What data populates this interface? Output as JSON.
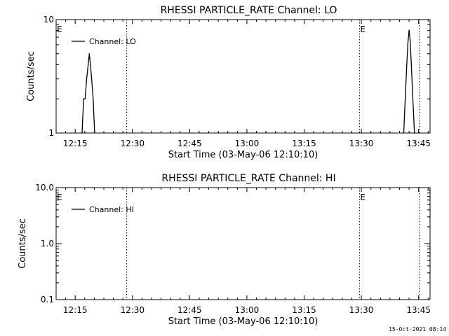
{
  "footer_timestamp": "15-Oct-2021 08:14",
  "chart_data": [
    {
      "type": "line",
      "title": "RHESSI PARTICLE_RATE Channel: LO",
      "xlabel": "Start Time (03-May-06 12:10:10)",
      "ylabel": "Counts/sec",
      "y_scale": "log",
      "ylim": [
        1,
        10
      ],
      "y_ticks": [
        {
          "v": 1,
          "label": "1"
        },
        {
          "v": 10,
          "label": "10"
        }
      ],
      "xlim_minutes_after_1210": [
        0,
        98
      ],
      "x_ticks": [
        {
          "m": 5,
          "label": "12:15"
        },
        {
          "m": 20,
          "label": "12:30"
        },
        {
          "m": 35,
          "label": "12:45"
        },
        {
          "m": 50,
          "label": "13:00"
        },
        {
          "m": 65,
          "label": "13:15"
        },
        {
          "m": 80,
          "label": "13:30"
        },
        {
          "m": 95,
          "label": "13:45"
        }
      ],
      "legend": {
        "label": "Channel: LO",
        "position": "top-left"
      },
      "event_lines": [
        {
          "m": 18.5,
          "label": ""
        },
        {
          "m": 79.5,
          "label": "E"
        },
        {
          "m": 95.2,
          "label": ""
        }
      ],
      "corner_marker": "E",
      "series": [
        {
          "x": [
            6.8,
            7.2,
            7.6,
            8.0,
            8.4,
            8.7,
            9.0,
            9.3,
            9.7,
            10.1
          ],
          "y": [
            1,
            2,
            2,
            3,
            4,
            5,
            4,
            3,
            2,
            1
          ]
        },
        {
          "x": [
            91.1,
            91.5,
            91.9,
            92.2,
            92.5,
            92.8,
            93.1,
            93.5,
            93.9
          ],
          "y": [
            1,
            2,
            4,
            6.3,
            8.1,
            6.5,
            4,
            2,
            1
          ]
        }
      ]
    },
    {
      "type": "line",
      "title": "RHESSI PARTICLE_RATE Channel: HI",
      "xlabel": "Start Time (03-May-06 12:10:10)",
      "ylabel": "Counts/sec",
      "y_scale": "log",
      "ylim": [
        0.1,
        10
      ],
      "y_ticks": [
        {
          "v": 0.1,
          "label": "0.1"
        },
        {
          "v": 1,
          "label": "1.0"
        },
        {
          "v": 10,
          "label": "10.0"
        }
      ],
      "xlim_minutes_after_1210": [
        0,
        98
      ],
      "x_ticks": [
        {
          "m": 5,
          "label": "12:15"
        },
        {
          "m": 20,
          "label": "12:30"
        },
        {
          "m": 35,
          "label": "12:45"
        },
        {
          "m": 50,
          "label": "13:00"
        },
        {
          "m": 65,
          "label": "13:15"
        },
        {
          "m": 80,
          "label": "13:30"
        },
        {
          "m": 95,
          "label": "13:45"
        }
      ],
      "legend": {
        "label": "Channel: HI",
        "position": "top-left"
      },
      "event_lines": [
        {
          "m": 18.5,
          "label": ""
        },
        {
          "m": 79.5,
          "label": "E"
        },
        {
          "m": 95.2,
          "label": ""
        }
      ],
      "corner_marker": "E",
      "series": []
    }
  ]
}
